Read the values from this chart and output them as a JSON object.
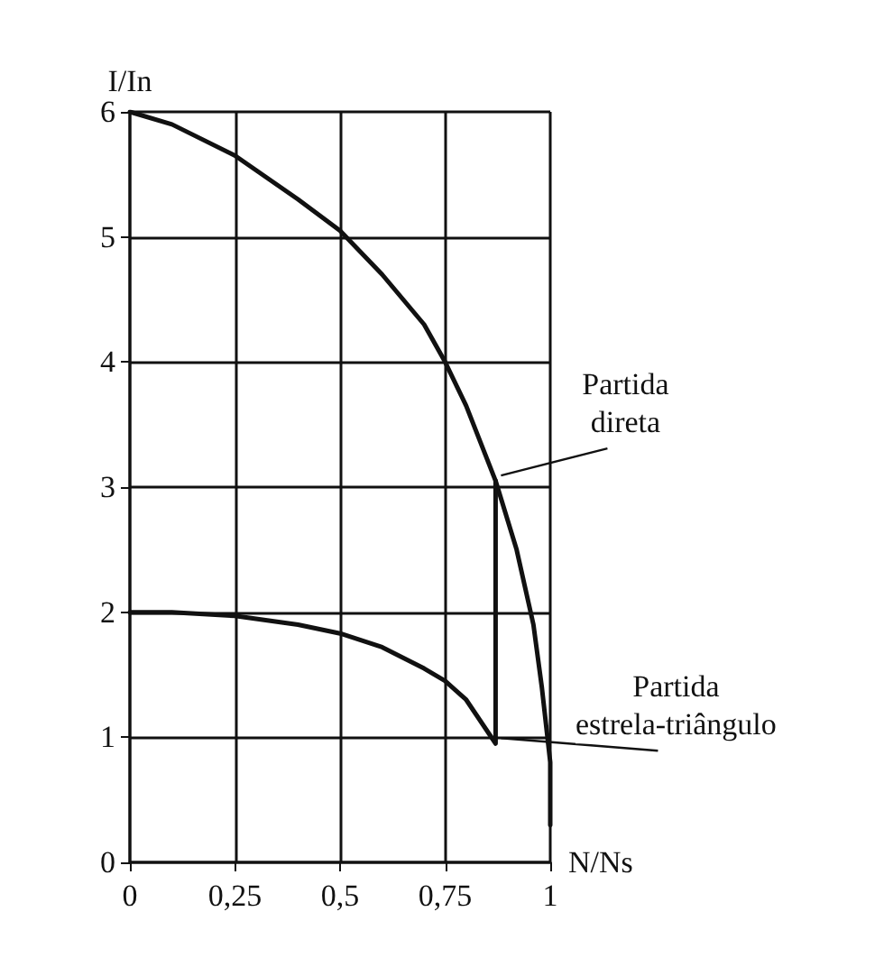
{
  "chart_data": {
    "type": "line",
    "xlabel": "N/Ns",
    "ylabel": "I/In",
    "xlim": [
      0,
      1
    ],
    "xticks": [
      0,
      {
        "value": 0.25,
        "label": "0,25"
      },
      {
        "value": 0.5,
        "label": "0,5"
      },
      {
        "value": 0.75,
        "label": "0,75"
      },
      1
    ],
    "ylim": [
      0,
      6
    ],
    "yticks": [
      0,
      1,
      2,
      3,
      4,
      5,
      6
    ],
    "grid": true,
    "marker": "none",
    "line_style": "solid",
    "series": [
      {
        "name": "Partida direta",
        "color": "#111111",
        "x": [
          0,
          0.1,
          0.25,
          0.4,
          0.5,
          0.6,
          0.7,
          0.75,
          0.8,
          0.87,
          0.92,
          0.96,
          0.98,
          1,
          1
        ],
        "values": [
          6,
          5.9,
          5.65,
          5.3,
          5.05,
          4.7,
          4.3,
          4,
          3.65,
          3.05,
          2.5,
          1.9,
          1.4,
          0.8,
          0.3
        ]
      },
      {
        "name": "Partida estrela-triângulo",
        "color": "#111111",
        "x": [
          0,
          0.1,
          0.25,
          0.4,
          0.5,
          0.6,
          0.7,
          0.75,
          0.8,
          0.87,
          0.87
        ],
        "values": [
          2,
          2,
          1.97,
          1.9,
          1.83,
          1.72,
          1.55,
          1.45,
          1.3,
          0.95,
          3.05
        ]
      }
    ]
  }
}
